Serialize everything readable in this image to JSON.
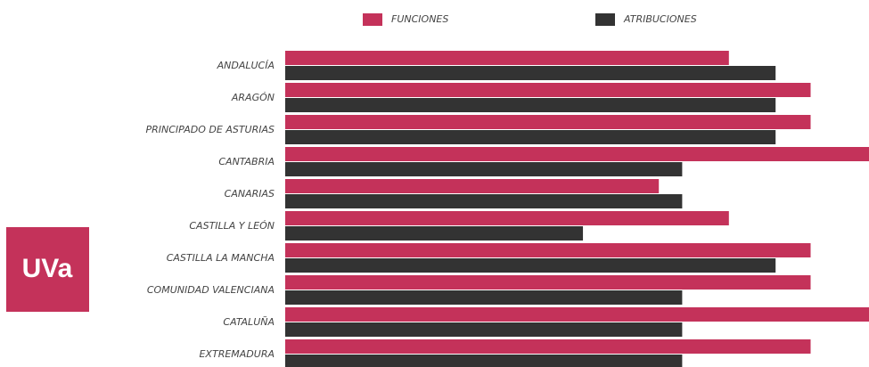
{
  "logo": "UVa",
  "chart_data": {
    "type": "hbar",
    "categories": [
      "ANDALUCÍA",
      "ARAGÓN",
      "PRINCIPADO DE ASTURIAS",
      "CANTABRIA",
      "CANARIAS",
      "CASTILLA Y LEÓN",
      "CASTILLA LA MANCHA",
      "COMUNIDAD VALENCIANA",
      "CATALUÑA",
      "EXTREMADURA"
    ],
    "series": [
      {
        "name": "FUNCIONES",
        "color": "#c4325a",
        "values": [
          76,
          90,
          90,
          102,
          64,
          76,
          90,
          90,
          102,
          90
        ]
      },
      {
        "name": "ATRIBUCIONES",
        "color": "#333333",
        "values": [
          84,
          84,
          84,
          68,
          68,
          51,
          84,
          68,
          68,
          68
        ]
      }
    ],
    "xlim": [
      0,
      100
    ]
  }
}
